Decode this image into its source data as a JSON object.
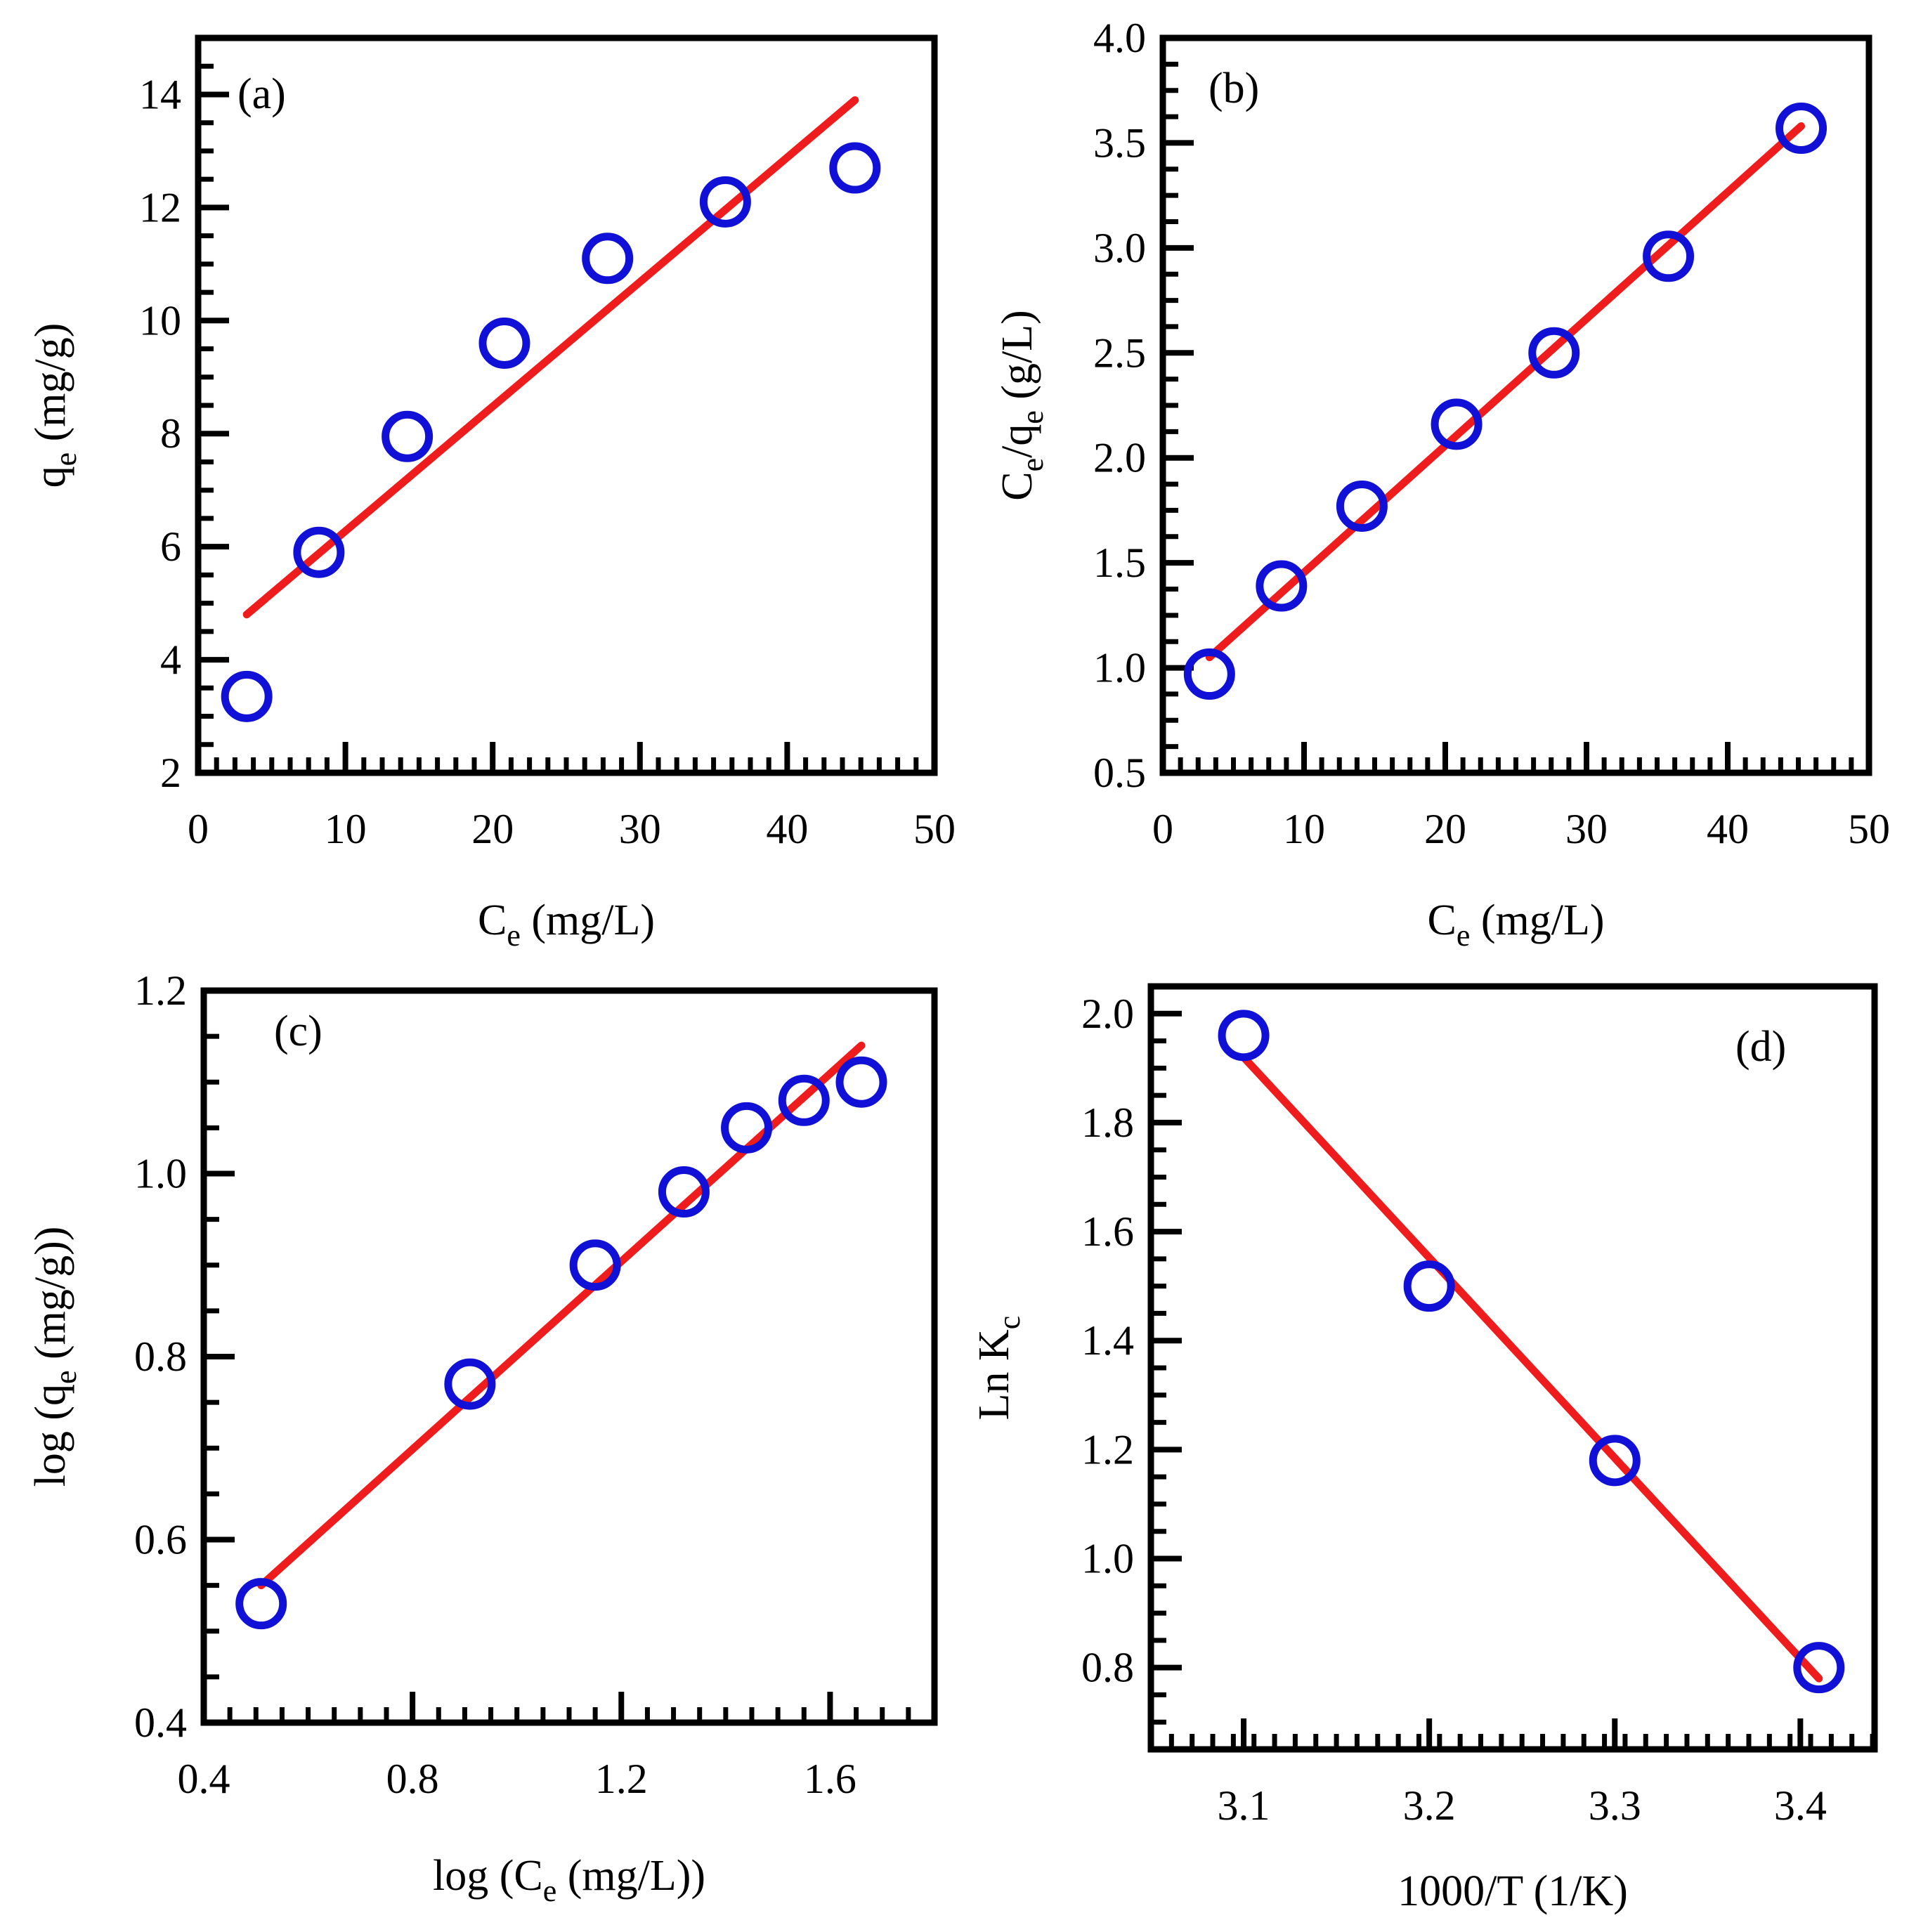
{
  "colors": {
    "marker": "#1010d6",
    "fit": "#ee1c1c",
    "axis": "#000000"
  },
  "chart_data": [
    {
      "id": "a",
      "type": "scatter",
      "tag": "(a)",
      "xlabel": {
        "main": "C",
        "sub": "e",
        "tail": " (mg/L)"
      },
      "ylabel": {
        "main": "q",
        "sub": "e",
        "tail": " (mg/g)"
      },
      "xlim": [
        0,
        50
      ],
      "ylim": [
        2,
        15
      ],
      "xticks": [
        0,
        10,
        20,
        30,
        40,
        50
      ],
      "yticks": [
        2,
        4,
        6,
        8,
        10,
        12,
        14
      ],
      "xtick_labels": [
        "0",
        "10",
        "20",
        "30",
        "40",
        "50"
      ],
      "ytick_labels": [
        "2",
        "4",
        "6",
        "8",
        "10",
        "12",
        "14"
      ],
      "series": [
        {
          "name": "experimental",
          "marker": "open-circle",
          "x": [
            3.3,
            8.2,
            14.2,
            20.8,
            27.8,
            35.8,
            44.6
          ],
          "y": [
            3.35,
            5.9,
            7.95,
            9.6,
            11.1,
            12.1,
            12.7
          ]
        },
        {
          "name": "linear fit",
          "kind": "line",
          "x": [
            3.3,
            44.6
          ],
          "y": [
            4.8,
            13.9
          ]
        }
      ]
    },
    {
      "id": "b",
      "type": "scatter",
      "tag": "(b)",
      "xlabel": {
        "main": "C",
        "sub": "e",
        "tail": " (mg/L)"
      },
      "ylabel": {
        "main": "C",
        "sub": "e",
        "mid": "/q",
        "sub2": "e",
        "tail": "  (g/L)"
      },
      "xlim": [
        0,
        50
      ],
      "ylim": [
        0.5,
        4.0
      ],
      "xticks": [
        0,
        10,
        20,
        30,
        40,
        50
      ],
      "yticks": [
        0.5,
        1.0,
        1.5,
        2.0,
        2.5,
        3.0,
        3.5,
        4.0
      ],
      "xtick_labels": [
        "0",
        "10",
        "20",
        "30",
        "40",
        "50"
      ],
      "ytick_labels": [
        "0.5",
        "1.0",
        "1.5",
        "2.0",
        "2.5",
        "3.0",
        "3.5",
        "4.0"
      ],
      "series": [
        {
          "name": "experimental",
          "marker": "open-circle",
          "x": [
            3.3,
            8.4,
            14.1,
            20.8,
            27.7,
            35.8,
            45.2
          ],
          "y": [
            0.97,
            1.39,
            1.77,
            2.16,
            2.5,
            2.96,
            3.57
          ]
        },
        {
          "name": "linear fit",
          "kind": "line",
          "x": [
            3.3,
            45.2
          ],
          "y": [
            1.05,
            3.58
          ]
        }
      ]
    },
    {
      "id": "c",
      "type": "scatter",
      "tag": "(c)",
      "xlabel": {
        "main": "log (C",
        "sub": "e",
        "tail": " (mg/L))"
      },
      "ylabel": {
        "main": "log (q",
        "sub": "e",
        "tail": "  (mg/g))"
      },
      "xlim": [
        0.4,
        1.8
      ],
      "ylim": [
        0.4,
        1.2
      ],
      "xticks": [
        0.4,
        0.8,
        1.2,
        1.6
      ],
      "yticks": [
        0.4,
        0.6,
        0.8,
        1.0,
        1.2
      ],
      "xtick_labels": [
        "0.4",
        "0.8",
        "1.2",
        "1.6"
      ],
      "ytick_labels": [
        "0.4",
        "0.6",
        "0.8",
        "1.0",
        "1.2"
      ],
      "series": [
        {
          "name": "experimental",
          "marker": "open-circle",
          "x": [
            0.51,
            0.91,
            1.15,
            1.32,
            1.44,
            1.55,
            1.66
          ],
          "y": [
            0.53,
            0.77,
            0.9,
            0.98,
            1.05,
            1.08,
            1.1
          ]
        },
        {
          "name": "linear fit",
          "kind": "line",
          "x": [
            0.51,
            1.66
          ],
          "y": [
            0.55,
            1.14
          ]
        }
      ]
    },
    {
      "id": "d",
      "type": "scatter",
      "tag": "(d)",
      "xlabel": {
        "main": "1000/T (1/K)"
      },
      "ylabel": {
        "main": "Ln K",
        "sub": "c"
      },
      "xlim": [
        3.05,
        3.44
      ],
      "ylim": [
        0.65,
        2.05
      ],
      "xticks": [
        3.1,
        3.2,
        3.3,
        3.4
      ],
      "yticks": [
        0.8,
        1.0,
        1.2,
        1.4,
        1.6,
        1.8,
        2.0
      ],
      "xtick_labels": [
        "3.1",
        "3.2",
        "3.3",
        "3.4"
      ],
      "ytick_labels": [
        "0.8",
        "1.0",
        "1.2",
        "1.4",
        "1.6",
        "1.8",
        "2.0"
      ],
      "series": [
        {
          "name": "experimental",
          "marker": "open-circle",
          "x": [
            3.1,
            3.2,
            3.3,
            3.41
          ],
          "y": [
            1.96,
            1.5,
            1.18,
            0.8
          ]
        },
        {
          "name": "linear fit",
          "kind": "line",
          "x": [
            3.1,
            3.41
          ],
          "y": [
            1.92,
            0.78
          ]
        }
      ]
    }
  ]
}
